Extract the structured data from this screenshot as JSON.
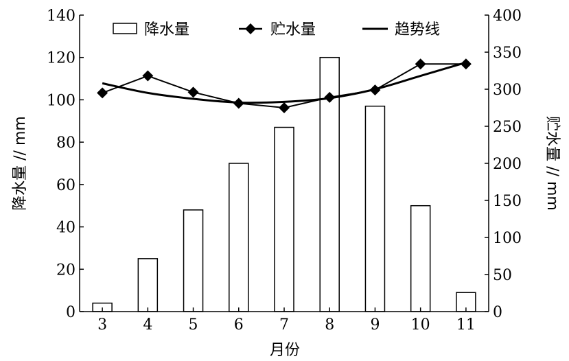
{
  "chart_data": {
    "type": "bar",
    "categories": [
      "3",
      "4",
      "5",
      "6",
      "7",
      "8",
      "9",
      "10",
      "11"
    ],
    "series": [
      {
        "name": "降水量",
        "type": "bar",
        "axis": "left",
        "values": [
          4,
          25,
          48,
          70,
          87,
          120,
          97,
          50,
          9
        ]
      },
      {
        "name": "贮水量",
        "type": "line",
        "marker": "diamond",
        "axis": "right",
        "values": [
          295,
          318,
          296,
          281,
          275,
          289,
          299,
          334,
          334
        ]
      },
      {
        "name": "趋势线",
        "type": "line",
        "axis": "right",
        "values": [
          308,
          295,
          287,
          282,
          283,
          288,
          300,
          318,
          336
        ]
      }
    ],
    "xlabel": "月份",
    "ylabel": "降水量 // mm",
    "ylabel_right": "贮水量 // mm",
    "ylim": [
      0,
      140
    ],
    "ylim_right": [
      0,
      400
    ],
    "yticks": [
      "0",
      "20",
      "40",
      "60",
      "80",
      "100",
      "120",
      "140"
    ],
    "yticks_right": [
      "0",
      "50",
      "100",
      "150",
      "200",
      "250",
      "300",
      "350",
      "400"
    ],
    "legend": "top",
    "grid": false
  }
}
